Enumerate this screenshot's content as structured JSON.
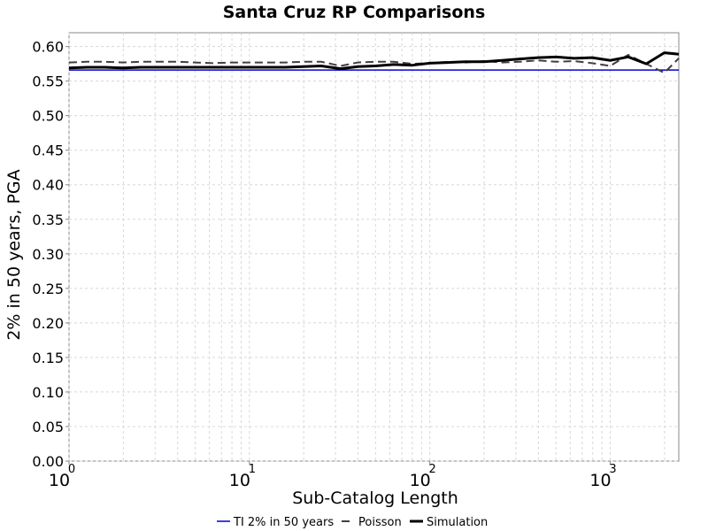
{
  "chart_data": {
    "type": "line",
    "title": "Santa Cruz RP Comparisons",
    "xlabel": "Sub-Catalog Length",
    "ylabel": "2% in 50 years, PGA",
    "xscale": "log",
    "xlim": [
      1,
      2400
    ],
    "ylim": [
      0.0,
      0.62
    ],
    "grid": true,
    "legend_position": "bottom",
    "yticks": [
      "0.00",
      "0.05",
      "0.10",
      "0.15",
      "0.20",
      "0.25",
      "0.30",
      "0.35",
      "0.40",
      "0.45",
      "0.50",
      "0.55",
      "0.60"
    ],
    "xticks": [
      {
        "base": "10",
        "exp": "0"
      },
      {
        "base": "10",
        "exp": "1"
      },
      {
        "base": "10",
        "exp": "2"
      },
      {
        "base": "10",
        "exp": "3"
      }
    ],
    "series": [
      {
        "name": "TI 2% in 50 years",
        "color": "#0000cc",
        "style": "solid",
        "x": [
          1,
          2400
        ],
        "y": [
          0.566,
          0.566
        ]
      },
      {
        "name": "Poisson",
        "color": "#404040",
        "style": "dashed",
        "x": [
          1,
          1.26,
          1.58,
          2,
          2.5,
          3.2,
          4,
          5,
          6.3,
          8,
          10,
          12.6,
          15.8,
          20,
          25,
          32,
          40,
          50,
          63,
          80,
          100,
          126,
          158,
          200,
          251,
          316,
          398,
          501,
          631,
          794,
          1000,
          1259,
          1585,
          1995,
          2400
        ],
        "y": [
          0.577,
          0.578,
          0.578,
          0.577,
          0.578,
          0.578,
          0.578,
          0.577,
          0.576,
          0.577,
          0.577,
          0.577,
          0.577,
          0.578,
          0.578,
          0.572,
          0.577,
          0.578,
          0.578,
          0.575,
          0.576,
          0.578,
          0.577,
          0.579,
          0.577,
          0.578,
          0.58,
          0.578,
          0.579,
          0.576,
          0.572,
          0.588,
          0.575,
          0.562,
          0.583
        ]
      },
      {
        "name": "Simulation",
        "color": "#000000",
        "style": "solid",
        "x": [
          1,
          1.26,
          1.58,
          2,
          2.5,
          3.2,
          4,
          5,
          6.3,
          8,
          10,
          12.6,
          15.8,
          20,
          25,
          32,
          40,
          50,
          63,
          80,
          100,
          126,
          158,
          200,
          251,
          316,
          398,
          501,
          631,
          794,
          1000,
          1259,
          1585,
          1995,
          2400
        ],
        "y": [
          0.569,
          0.57,
          0.57,
          0.569,
          0.57,
          0.57,
          0.57,
          0.57,
          0.57,
          0.57,
          0.57,
          0.57,
          0.57,
          0.571,
          0.572,
          0.568,
          0.571,
          0.572,
          0.574,
          0.573,
          0.576,
          0.577,
          0.578,
          0.578,
          0.58,
          0.582,
          0.584,
          0.585,
          0.583,
          0.584,
          0.58,
          0.585,
          0.575,
          0.591,
          0.589
        ]
      }
    ]
  }
}
